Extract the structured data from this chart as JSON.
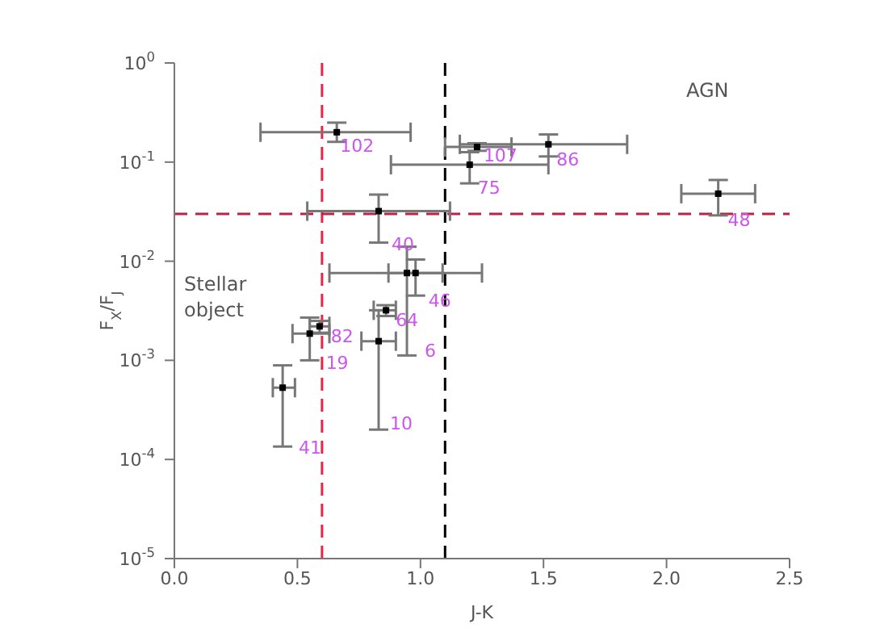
{
  "chart_data": {
    "type": "scatter",
    "xlabel": "J-K",
    "ylabel": "F$_{X}$/F$_{J}$",
    "log": "y",
    "marker": "square",
    "grid": false,
    "xlim": [
      0,
      2.5
    ],
    "xticks": [
      {
        "value": 0,
        "label": "0.0"
      },
      {
        "value": 0.5,
        "label": "0.5"
      },
      {
        "value": 1,
        "label": "1.0"
      },
      {
        "value": 1.5,
        "label": "1.5"
      },
      {
        "value": 2,
        "label": "2.0"
      },
      {
        "value": 2.5,
        "label": "2.5"
      }
    ],
    "ylim": [
      1e-05,
      1
    ],
    "yticks": [
      {
        "value": 1e-05,
        "label": "10$^{-5}$"
      },
      {
        "value": 0.0001,
        "label": "10$^{-4}$"
      },
      {
        "value": 0.001,
        "label": "10$^{-3}$"
      },
      {
        "value": 0.01,
        "label": "10$^{-2}$"
      },
      {
        "value": 0.1,
        "label": "10$^{-1}$"
      },
      {
        "value": 1,
        "label": "10$^{0}$"
      }
    ],
    "series": [
      {
        "color": "#000000",
        "x": [
          0.66,
          1.23,
          1.52,
          1.2,
          2.21,
          0.83,
          0.98,
          0.945,
          0.86,
          0.59,
          0.55,
          0.83,
          0.44
        ],
        "values": [
          0.2,
          0.142,
          0.151,
          0.094,
          0.048,
          0.032,
          0.0076,
          0.0076,
          0.0032,
          0.0022,
          0.00186,
          0.00156,
          0.00053
        ],
        "errors": [
          [
            0.16,
            0.25
          ],
          [
            0.13,
            0.155
          ],
          [
            0.114,
            0.19
          ],
          [
            0.061,
            0.126
          ],
          [
            0.029,
            0.066
          ],
          [
            0.0154,
            0.047
          ],
          [
            0.0045,
            0.0104
          ],
          [
            0.00112,
            0.014
          ],
          [
            0.0028,
            0.0036
          ],
          [
            0.0019,
            0.0025
          ],
          [
            0.001,
            0.0027
          ],
          [
            0.0002,
            0.0032
          ],
          [
            0.000135,
            0.00089
          ]
        ],
        "xerrors": [
          [
            0.35,
            0.96
          ],
          [
            1.1,
            1.37
          ],
          [
            1.16,
            1.84
          ],
          [
            0.88,
            1.52
          ],
          [
            2.06,
            2.36
          ],
          [
            0.54,
            1.12
          ],
          [
            0.87,
            1.09
          ],
          [
            0.63,
            1.25
          ],
          [
            0.81,
            0.9
          ],
          [
            0.55,
            0.63
          ],
          [
            0.48,
            0.63
          ],
          [
            0.76,
            0.9
          ],
          [
            0.4,
            0.49
          ]
        ]
      }
    ],
    "ref_lines": [
      {
        "axis": "x",
        "value": 0.6,
        "color": "#ee2244",
        "line_style": "dashed"
      },
      {
        "axis": "x",
        "value": 1.1,
        "color": "#000000",
        "line_style": "dashed"
      },
      {
        "axis": "y",
        "value": 0.03,
        "color": "#bb2244",
        "line_style": "dashed"
      }
    ],
    "annotations": [
      "AGN",
      "Stellar object",
      {
        "text": "102",
        "x": 0.66,
        "y": 0.2
      },
      {
        "text": "107",
        "x": 1.23,
        "y": 0.142
      },
      {
        "text": "86",
        "x": 1.52,
        "y": 0.151
      },
      {
        "text": "75",
        "x": 1.2,
        "y": 0.094
      },
      {
        "text": "48",
        "x": 2.21,
        "y": 0.048
      },
      {
        "text": "40",
        "x": 0.83,
        "y": 0.032
      },
      {
        "text": "46",
        "x": 0.98,
        "y": 0.0076
      },
      {
        "text": "6",
        "x": 0.945,
        "y": 0.00112
      },
      {
        "text": "64",
        "x": 0.86,
        "y": 0.0032
      },
      {
        "text": "82",
        "x": 0.59,
        "y": 0.0022
      },
      {
        "text": "19",
        "x": 0.55,
        "y": 0.00186
      },
      {
        "text": "10",
        "x": 0.83,
        "y": 0.0002
      },
      {
        "text": "41",
        "x": 0.44,
        "y": 0.00053
      }
    ]
  }
}
